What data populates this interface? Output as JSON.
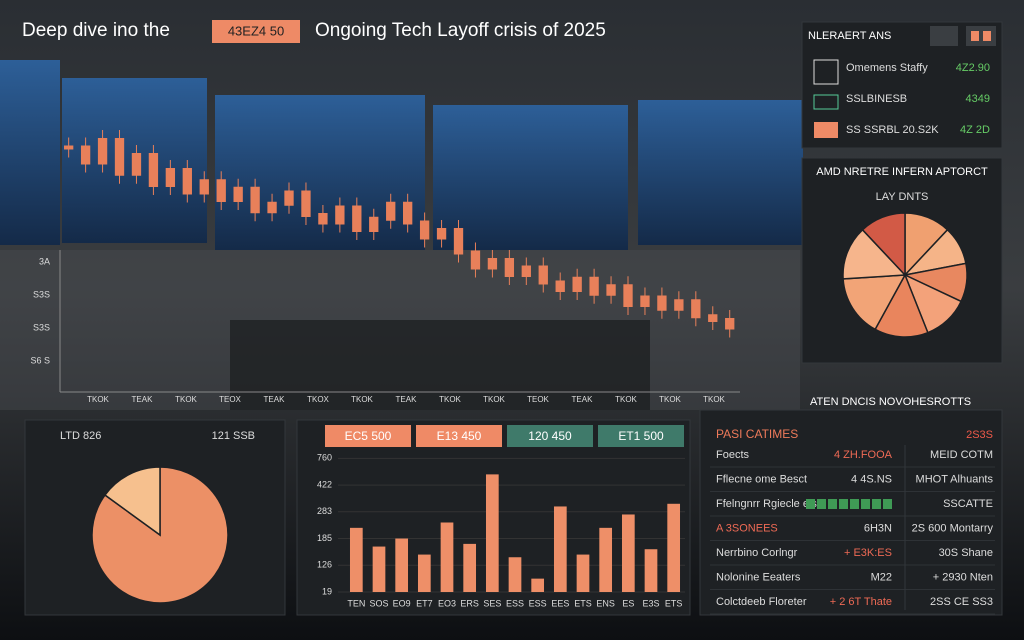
{
  "header": {
    "title_left": "Deep dive ino the",
    "badge": "43EZ4 50",
    "title_right": "Ongoing Tech Layoff crisis of 2025"
  },
  "alerts": {
    "title": "NLERAERT ANS",
    "items": [
      {
        "label": "Omemens Staffy",
        "value": "4Z2.90"
      },
      {
        "label": "SSLBINESB",
        "value": "4349"
      },
      {
        "label": "SS SSRBL 20.S2K",
        "value": "4Z 2D"
      }
    ]
  },
  "market": {
    "type": "candlestick",
    "color": "#e8805a",
    "ylim": [
      10,
      90
    ],
    "axis_labels": [
      "3A",
      "S3S",
      "S3S",
      "S6 S"
    ],
    "x_labels": [
      "TKOK",
      "TEAK",
      "TKOK",
      "TEOX",
      "TEAK",
      "TKOX",
      "TKOK",
      "TEAK",
      "TKOK",
      "TKOK",
      "TEOK",
      "TEAK",
      "TKOK",
      "TKOK",
      "TKOK"
    ],
    "values": [
      72,
      68,
      74,
      65,
      70,
      62,
      66,
      60,
      63,
      58,
      61,
      55,
      57,
      60,
      54,
      52,
      56,
      50,
      53,
      57,
      52,
      48,
      50,
      44,
      40,
      42,
      38,
      40,
      36,
      34,
      37,
      33,
      35,
      30,
      32,
      29,
      31,
      27,
      26,
      24
    ]
  },
  "pie_right": {
    "type": "pie",
    "title": "AMD NRETRE INFERN APTORCT",
    "subtitle": "LAY DNTS",
    "values": [
      12,
      10,
      10,
      12,
      14,
      16,
      14,
      12
    ],
    "colors": [
      "#f0a070",
      "#f5b488",
      "#e88860",
      "#f3a27a",
      "#e9855d",
      "#f2a477",
      "#f6b58c",
      "#d25a46"
    ]
  },
  "pie_left": {
    "type": "pie",
    "label_left": "LTD 826",
    "label_right": "121 SSB",
    "values": [
      85,
      15
    ],
    "colors": [
      "#ec9066",
      "#f6c08e"
    ]
  },
  "bar_chart": {
    "type": "bar",
    "color": "#ee8f68",
    "buttons": [
      {
        "text": "EC5 500",
        "color": "#ef8a66"
      },
      {
        "text": "E13 450",
        "color": "#ef8a66"
      },
      {
        "text": "120 450",
        "color": "#3f7a6a"
      },
      {
        "text": "ET1 500",
        "color": "#3f7a6a"
      }
    ],
    "categories": [
      "TEN",
      "SOS",
      "EO9",
      "ET7",
      "EO3",
      "ERS",
      "SES",
      "ESS",
      "ESS",
      "EES",
      "ETS",
      "ENS",
      "ES",
      "E3S",
      "ETS"
    ],
    "values": [
      2.4,
      1.7,
      2.0,
      1.4,
      2.6,
      1.8,
      4.4,
      1.3,
      0.5,
      3.2,
      1.4,
      2.4,
      2.9,
      1.6,
      3.3
    ],
    "ylim": [
      0,
      5.2
    ],
    "yticks": [
      {
        "value": 0,
        "label": "19"
      },
      {
        "value": 1,
        "label": "126"
      },
      {
        "value": 2,
        "label": "185"
      },
      {
        "value": 3,
        "label": "283"
      },
      {
        "value": 4,
        "label": "422"
      },
      {
        "value": 5,
        "label": "760"
      }
    ]
  },
  "table": {
    "caption": "ATEN DNCIS NOVOHESROTTS",
    "title": "PASI CATIMES",
    "title_value": "2S3S",
    "rows": [
      [
        "Foects",
        "4 ZH.FOOA",
        "MEID COTM"
      ],
      [
        "Fflecne ome Besct",
        "4 4S.NS",
        "MHOT Alhuants"
      ],
      [
        "Ffelngnrr Rgiecle eis",
        "",
        "SSCATTE"
      ],
      [
        "A 3SONEES",
        "6H3N",
        "2S 600 Montarry"
      ],
      [
        "Nerrbino Corlngr",
        "+ E3K:ES",
        "30S Shane"
      ],
      [
        "Nolonine Eeaters",
        "M22",
        "+ 2930 Nten"
      ],
      [
        "Colctdeeb Floreter",
        "+ 2 6T Thate",
        "2SS CE SS3"
      ]
    ]
  }
}
